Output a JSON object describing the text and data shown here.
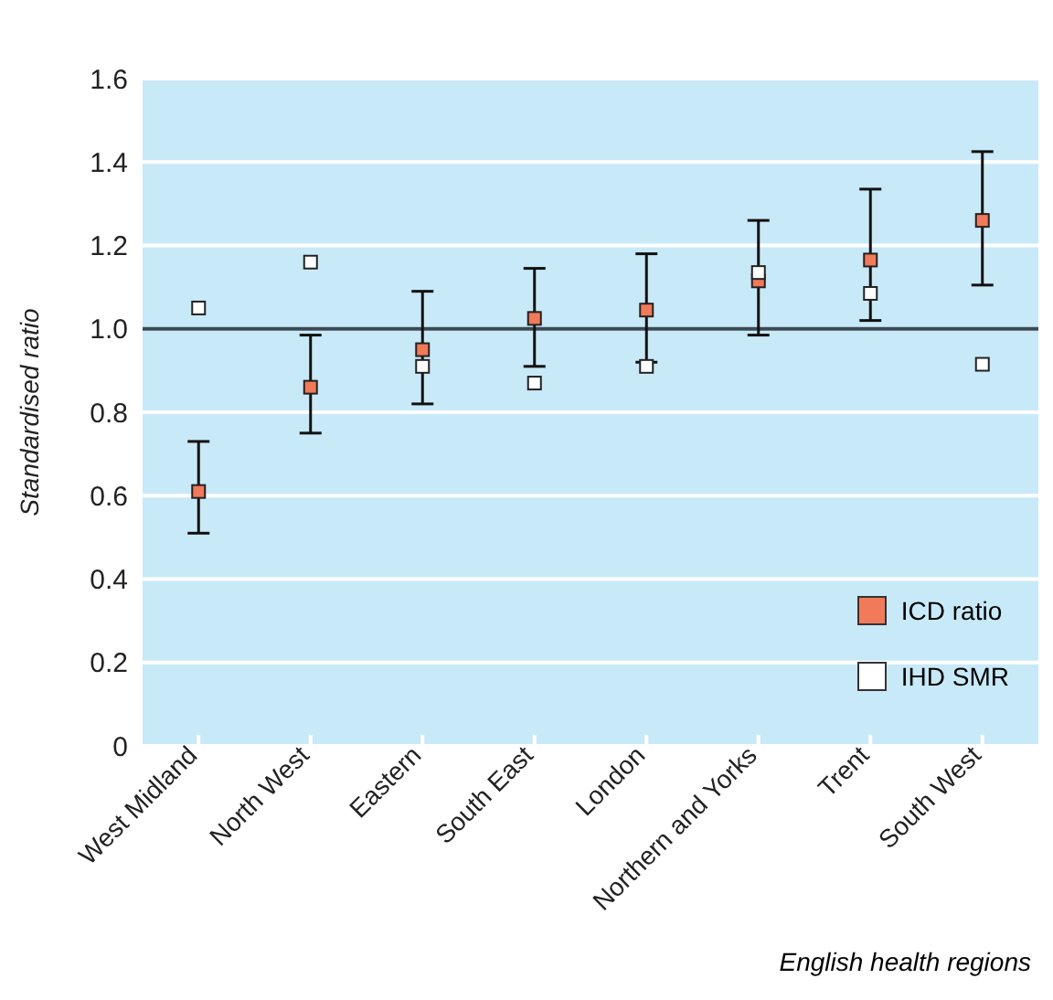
{
  "chart_data": {
    "type": "scatter",
    "xlabel": "English health regions",
    "ylabel": "Standardised ratio",
    "categories": [
      "West Midland",
      "North West",
      "Eastern",
      "South East",
      "London",
      "Northern and Yorks",
      "Trent",
      "South West"
    ],
    "series": [
      {
        "name": "ICD ratio",
        "color": "#f07a5a",
        "values": [
          0.61,
          0.86,
          0.95,
          1.025,
          1.045,
          1.115,
          1.165,
          1.26
        ],
        "errors": [
          [
            0.51,
            0.73
          ],
          [
            0.75,
            0.985
          ],
          [
            0.82,
            1.09
          ],
          [
            0.91,
            1.145
          ],
          [
            0.92,
            1.18
          ],
          [
            0.985,
            1.26
          ],
          [
            1.02,
            1.335
          ],
          [
            1.105,
            1.425
          ]
        ]
      },
      {
        "name": "IHD SMR",
        "color": "#ffffff",
        "values": [
          1.05,
          1.16,
          0.91,
          0.87,
          0.91,
          1.135,
          1.085,
          0.915
        ]
      }
    ],
    "ylim": [
      0,
      1.6
    ],
    "yticks": [
      0,
      {
        "value": 0.2,
        "label": "0.2"
      },
      {
        "value": 0.4,
        "label": "0.4"
      },
      {
        "value": 0.6,
        "label": "0.6"
      },
      {
        "value": 0.8,
        "label": "0.8"
      },
      {
        "value": 1,
        "label": "1.0"
      },
      {
        "value": 1.2,
        "label": "1.2"
      },
      {
        "value": 1.4,
        "label": "1.4"
      },
      {
        "value": 1.6,
        "label": "1.6"
      }
    ],
    "ref_lines": [
      {
        "axis": "y",
        "value": 1.0,
        "color": "#3a4a55"
      }
    ],
    "grid": "y",
    "legend": "bottom right",
    "marker": "square"
  }
}
